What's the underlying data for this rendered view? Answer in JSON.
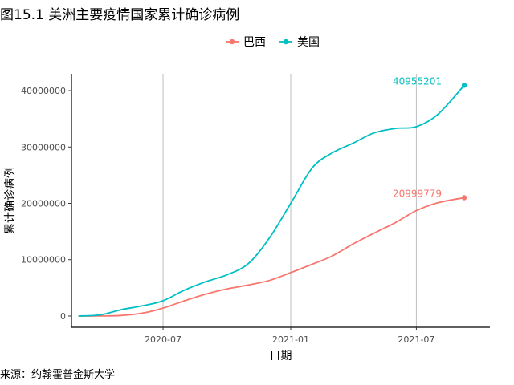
{
  "figure_title": "图15.1 美洲主要疫情国家累计确诊病例",
  "source_note": "来源：约翰霍普金斯大学",
  "chart_data": {
    "type": "line",
    "xlabel": "日期",
    "ylabel": "累计确诊病例",
    "x_ticks": [
      "2020-07",
      "2021-01",
      "2021-07"
    ],
    "y_ticks": [
      0,
      10000000,
      20000000,
      30000000,
      40000000
    ],
    "y_tick_labels": [
      "0",
      "10000000",
      "20000000",
      "30000000",
      "40000000"
    ],
    "xlim": [
      "2020-02-20",
      "2021-10-15"
    ],
    "ylim": [
      -2000000,
      43000000
    ],
    "grid": "vertical-major",
    "legend_position": "top",
    "x": [
      "2020-03-01",
      "2020-04-01",
      "2020-05-01",
      "2020-06-01",
      "2020-07-01",
      "2020-08-01",
      "2020-09-01",
      "2020-10-01",
      "2020-11-01",
      "2020-12-01",
      "2021-01-01",
      "2021-02-01",
      "2021-03-01",
      "2021-04-01",
      "2021-05-01",
      "2021-06-01",
      "2021-07-01",
      "2021-08-01",
      "2021-09-08"
    ],
    "series": [
      {
        "name": "巴西",
        "color": "#F8766D",
        "values": [
          0,
          10000,
          90000,
          500000,
          1400000,
          2700000,
          3900000,
          4800000,
          5500000,
          6300000,
          7700000,
          9200000,
          10600000,
          12800000,
          14700000,
          16600000,
          18700000,
          20100000,
          20999779
        ],
        "end_label": "20999779"
      },
      {
        "name": "美国",
        "color": "#00BFC4",
        "values": [
          0,
          200000,
          1100000,
          1800000,
          2700000,
          4600000,
          6100000,
          7300000,
          9300000,
          13800000,
          20000000,
          26300000,
          28900000,
          30700000,
          32500000,
          33300000,
          33600000,
          35800000,
          40955201
        ],
        "end_label": "40955201"
      }
    ]
  }
}
